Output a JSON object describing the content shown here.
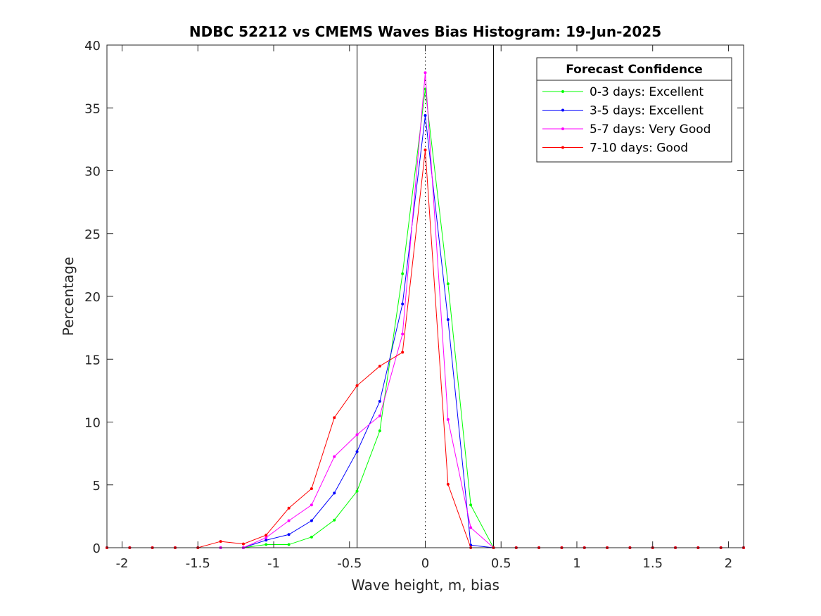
{
  "chart_data": {
    "type": "line",
    "title": "NDBC 52212 vs CMEMS Waves Bias Histogram: 19-Jun-2025",
    "xlabel": "Wave height, m, bias",
    "ylabel": "Percentage",
    "xlim": [
      -2.1,
      2.1
    ],
    "ylim": [
      0,
      40
    ],
    "xticks": [
      -2,
      -1.5,
      -1,
      -0.5,
      0,
      0.5,
      1,
      1.5,
      2
    ],
    "xtick_labels": [
      "-2",
      "-1.5",
      "-1",
      "-0.5",
      "0",
      "0.5",
      "1",
      "1.5",
      "2"
    ],
    "yticks": [
      0,
      5,
      10,
      15,
      20,
      25,
      30,
      35,
      40
    ],
    "ytick_labels": [
      "0",
      "5",
      "10",
      "15",
      "20",
      "25",
      "30",
      "35",
      "40"
    ],
    "grid": false,
    "reference_lines": {
      "solid_x": [
        -0.45,
        0.45
      ],
      "dotted_x": [
        0
      ]
    },
    "legend": {
      "title": "Forecast Confidence",
      "location": "top-right"
    },
    "x": [
      -2.1,
      -1.95,
      -1.8,
      -1.65,
      -1.5,
      -1.35,
      -1.2,
      -1.05,
      -0.9,
      -0.75,
      -0.6,
      -0.45,
      -0.3,
      -0.15,
      0,
      0.15,
      0.3,
      0.45,
      0.6,
      0.75,
      0.9,
      1.05,
      1.2,
      1.35,
      1.5,
      1.65,
      1.8,
      1.95,
      2.1
    ],
    "series": [
      {
        "name": "0-3 days: Excellent",
        "color": "#00ff00",
        "values": [
          0,
          0,
          0,
          0,
          0,
          0,
          0,
          0.25,
          0.25,
          0.85,
          2.2,
          4.5,
          9.3,
          21.8,
          36.5,
          21.0,
          3.4,
          0,
          0,
          0,
          0,
          0,
          0,
          0,
          0,
          0,
          0,
          0,
          0
        ]
      },
      {
        "name": "3-5 days: Excellent",
        "color": "#0000ff",
        "values": [
          0,
          0,
          0,
          0,
          0,
          0,
          0,
          0.6,
          1.05,
          2.15,
          4.35,
          7.65,
          11.65,
          19.4,
          34.4,
          18.15,
          0.2,
          0,
          0,
          0,
          0,
          0,
          0,
          0,
          0,
          0,
          0,
          0,
          0
        ]
      },
      {
        "name": "5-7 days: Very Good",
        "color": "#ff00ff",
        "values": [
          0,
          0,
          0,
          0,
          0,
          0,
          0,
          0.8,
          2.15,
          3.4,
          7.25,
          9.0,
          10.5,
          17.0,
          37.8,
          10.2,
          1.6,
          0,
          0,
          0,
          0,
          0,
          0,
          0,
          0,
          0,
          0,
          0,
          0
        ]
      },
      {
        "name": "7-10 days: Good",
        "color": "#ff0000",
        "values": [
          0,
          0,
          0,
          0,
          0,
          0.5,
          0.3,
          1.0,
          3.15,
          4.7,
          10.35,
          12.9,
          14.45,
          15.55,
          31.65,
          5.05,
          0,
          0,
          0,
          0,
          0,
          0,
          0,
          0,
          0,
          0,
          0,
          0,
          0
        ]
      }
    ]
  }
}
